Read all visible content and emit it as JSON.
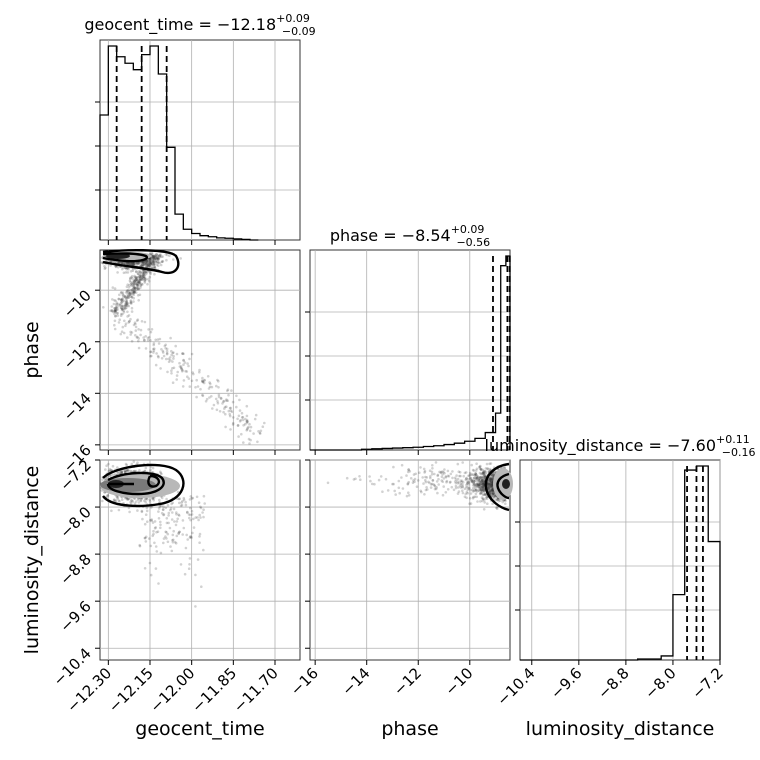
{
  "chart_data": {
    "type": "corner",
    "parameters": [
      "geocent_time",
      "phase",
      "luminosity_distance"
    ],
    "axis_labels": {
      "x": [
        "geocent_time",
        "phase",
        "luminosity_distance"
      ],
      "y": [
        "",
        "phase",
        "luminosity_distance"
      ]
    },
    "ranges": {
      "geocent_time": [
        -12.33,
        -11.61
      ],
      "phase": [
        -16.2,
        -8.44
      ],
      "luminosity_distance": [
        -10.6,
        -7.2
      ]
    },
    "ticks": {
      "geocent_time": [
        -12.3,
        -12.15,
        -12.0,
        -11.85,
        -11.7
      ],
      "phase": [
        -16,
        -14,
        -12,
        -10
      ],
      "luminosity_distance": [
        -10.4,
        -9.6,
        -8.8,
        -8.0,
        -7.2
      ]
    },
    "tick_labels": {
      "geocent_time": [
        "−12.30",
        "−12.15",
        "−12.00",
        "−11.85",
        "−11.70"
      ],
      "phase": [
        "−16",
        "−14",
        "−12",
        "−10"
      ],
      "luminosity_distance": [
        "−10.4",
        "−9.6",
        "−8.8",
        "−8.0",
        "−7.2"
      ]
    },
    "titles": [
      {
        "name": "geocent_time",
        "median": "−12.18",
        "plus": "+0.09",
        "minus": "−0.09"
      },
      {
        "name": "phase",
        "median": "−8.54",
        "plus": "+0.09",
        "minus": "−0.56"
      },
      {
        "name": "luminosity_distance",
        "median": "−7.60",
        "plus": "+0.11",
        "minus": "−0.16"
      }
    ],
    "histograms": {
      "geocent_time": {
        "bin_edges": [
          -12.33,
          -12.3,
          -12.27,
          -12.24,
          -12.21,
          -12.18,
          -12.15,
          -12.12,
          -12.09,
          -12.06,
          -12.03,
          -12.0,
          -11.97,
          -11.94,
          -11.91,
          -11.88,
          -11.85,
          -11.82,
          -11.79,
          -11.76
        ],
        "counts": [
          0.58,
          0.9,
          0.85,
          0.82,
          0.79,
          0.86,
          0.9,
          0.77,
          0.43,
          0.12,
          0.05,
          0.03,
          0.02,
          0.015,
          0.01,
          0.008,
          0.005,
          0.003,
          0.0
        ],
        "quantiles": [
          -12.27,
          -12.18,
          -12.09
        ]
      },
      "phase": {
        "bin_edges": [
          -16.2,
          -15.8,
          -15.4,
          -15.0,
          -14.6,
          -14.2,
          -13.8,
          -13.4,
          -13.0,
          -12.6,
          -12.2,
          -11.8,
          -11.4,
          -11.0,
          -10.6,
          -10.2,
          -9.8,
          -9.4,
          -9.0,
          -8.8,
          -8.6,
          -8.44
        ],
        "counts": [
          0,
          0,
          0,
          0,
          0,
          0.004,
          0.006,
          0.008,
          0.01,
          0.012,
          0.014,
          0.018,
          0.022,
          0.028,
          0.035,
          0.045,
          0.06,
          0.09,
          0.19,
          0.95,
          1.0
        ],
        "quantiles": [
          -9.1,
          -8.54,
          -8.45
        ]
      },
      "luminosity_distance": {
        "bin_edges": [
          -10.6,
          -10.2,
          -9.8,
          -9.4,
          -9.0,
          -8.6,
          -8.2,
          -8.0,
          -7.8,
          -7.6,
          -7.4,
          -7.2
        ],
        "counts": [
          0,
          0,
          0,
          0,
          0,
          0.005,
          0.02,
          0.32,
          0.93,
          0.95,
          0.58
        ],
        "quantiles": [
          -7.76,
          -7.6,
          -7.49
        ]
      }
    },
    "grid": true
  }
}
